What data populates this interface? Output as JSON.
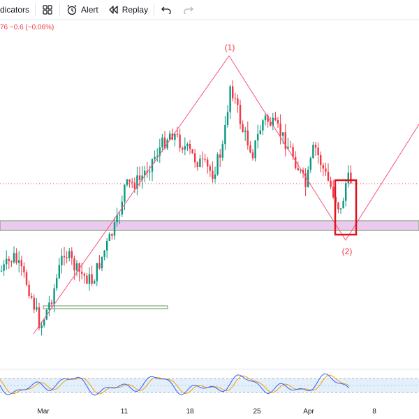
{
  "toolbar": {
    "indicators_label": "dicators",
    "alert_label": "Alert",
    "replay_label": "Replay"
  },
  "price_change": {
    "text": "76  −0.6  (−0.06%)",
    "color": "#f23645"
  },
  "wave_labels": {
    "peak": "(1)",
    "trough": "(2)"
  },
  "x_axis": {
    "ticks": [
      "Mar",
      "11",
      "18",
      "25",
      "Apr",
      "8"
    ]
  },
  "colors": {
    "up": "#089981",
    "down": "#f23645",
    "wave": "#f7527a",
    "zone_fill": "#ecc9ee",
    "zone_border": "#5b9e5b",
    "highlight": "#e0141e",
    "stoch_k": "#2962ff",
    "stoch_d": "#ff9800",
    "osc_band": "#e3f0fb"
  },
  "icons": [
    "fx-icon",
    "layout-grid-icon",
    "alarm-clock-icon",
    "replay-rewind-icon",
    "undo-icon",
    "redo-icon"
  ]
}
